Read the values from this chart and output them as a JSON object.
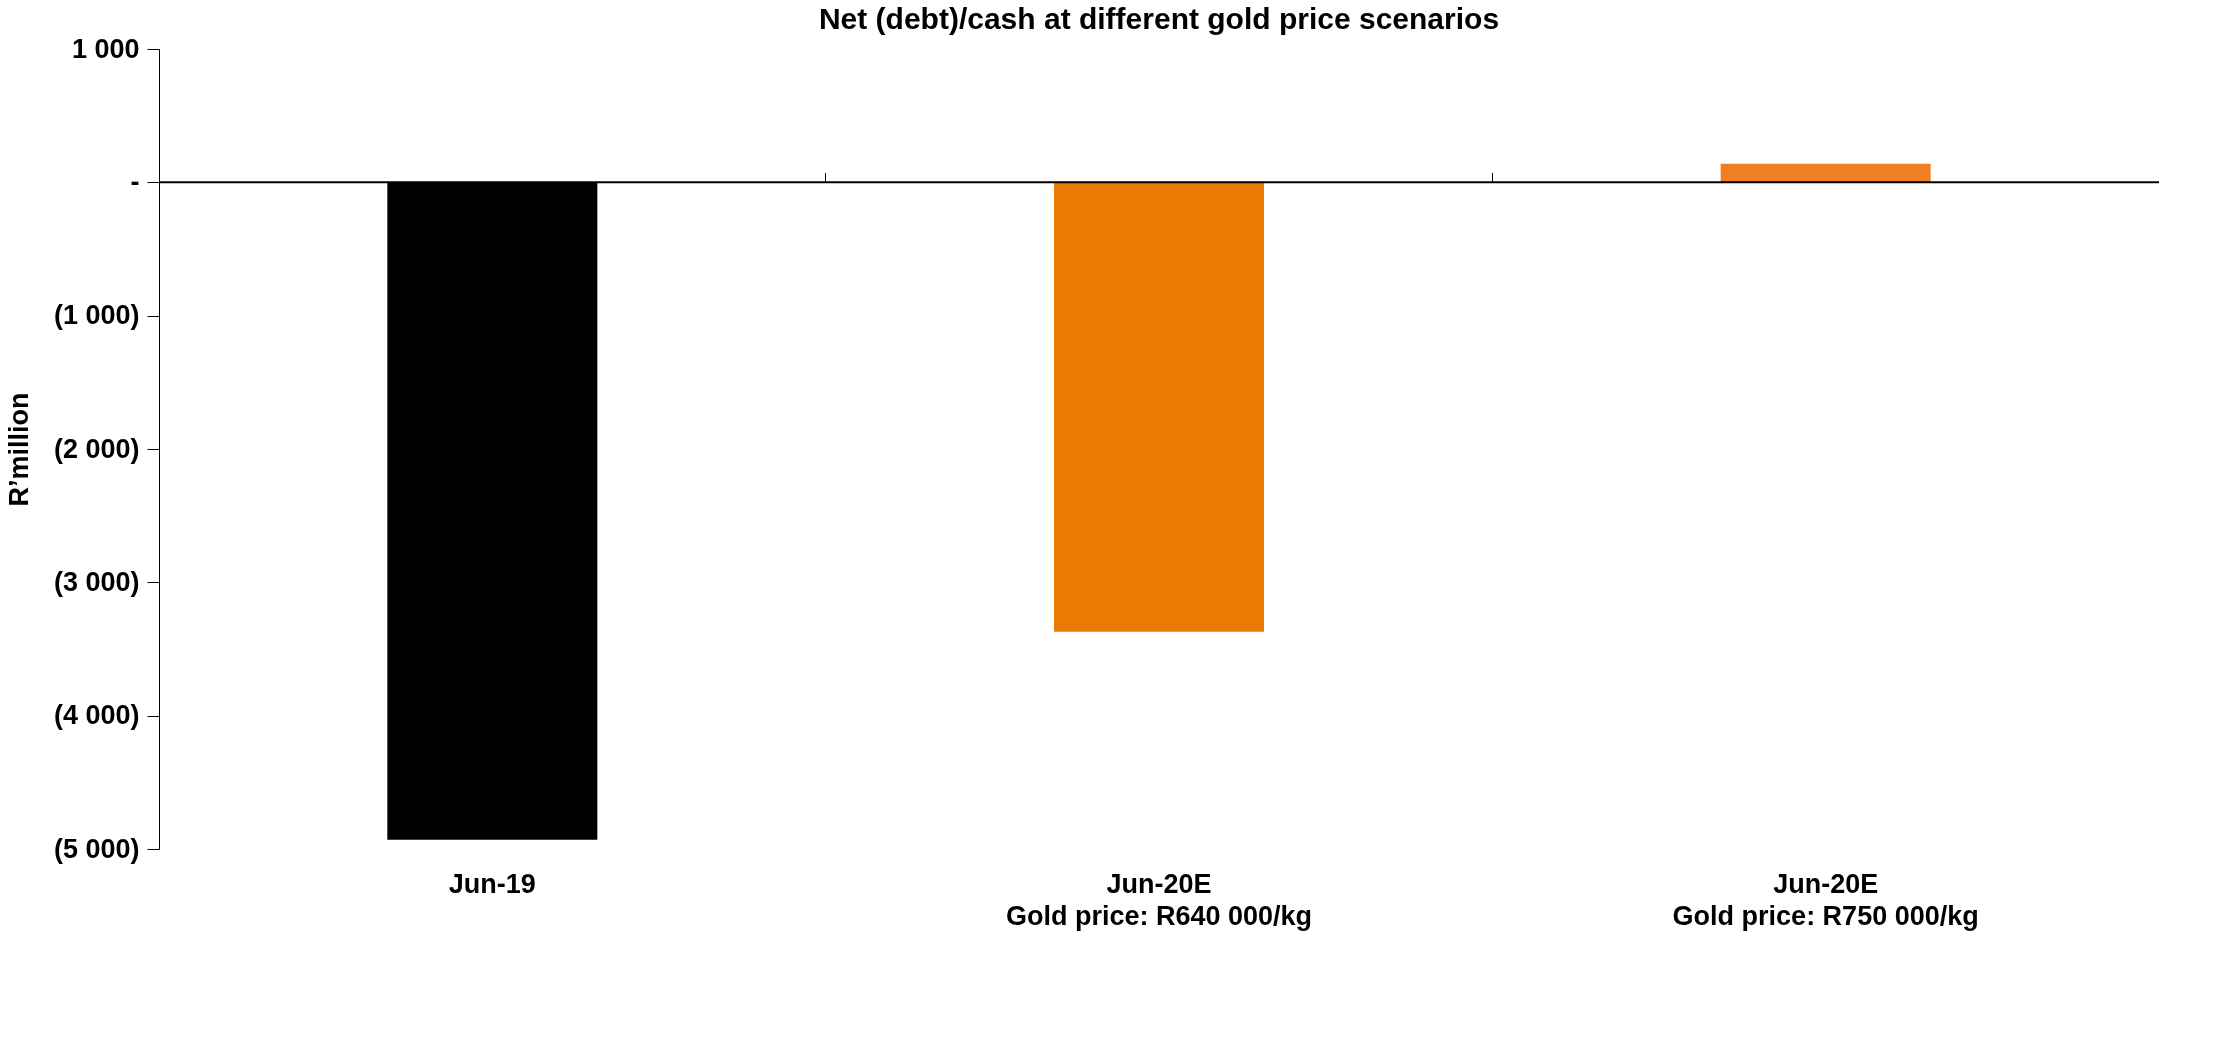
{
  "chart_data": {
    "type": "bar",
    "title": "Net (debt)/cash at different gold price scenarios",
    "ylabel": "R’million",
    "categories": [
      "Jun-19",
      "Jun-20E\nGold price: R640 000/kg",
      "Jun-20E\nGold price: R750 000/kg"
    ],
    "values": [
      -4930,
      -3370,
      140
    ],
    "colors": [
      "#000000",
      "#eb7a05",
      "#ee7f22"
    ],
    "ylim": [
      -5000,
      1000
    ],
    "yticks": [
      {
        "value": 1000,
        "label": "1 000"
      },
      {
        "value": 0,
        "label": "-"
      },
      {
        "value": -1000,
        "label": "(1 000)"
      },
      {
        "value": -2000,
        "label": "(2 000)"
      },
      {
        "value": -3000,
        "label": "(3 000)"
      },
      {
        "value": -4000,
        "label": "(4 000)"
      },
      {
        "value": -5000,
        "label": "(5 000)"
      }
    ],
    "ref_lines": [
      {
        "axis": "y",
        "value": 0,
        "color": "#000000"
      }
    ],
    "grid": false
  }
}
